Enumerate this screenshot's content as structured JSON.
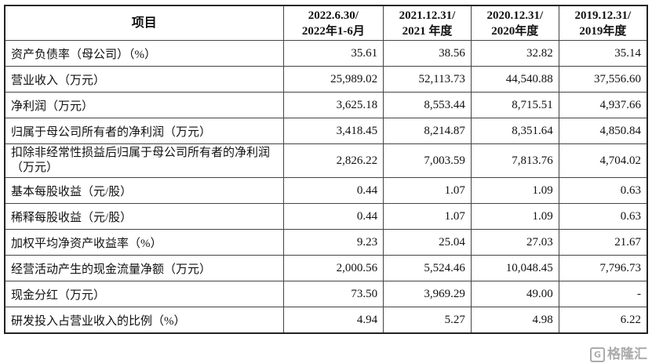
{
  "table": {
    "headers": [
      [
        "项目"
      ],
      [
        "2022.6.30/",
        "2022年1-6月"
      ],
      [
        "2021.12.31/",
        "2021 年度"
      ],
      [
        "2020.12.31/",
        "2020年度"
      ],
      [
        "2019.12.31/",
        "2019年度"
      ]
    ],
    "rows": [
      {
        "label": "资产负债率（母公司）（%）",
        "values": [
          "35.61",
          "38.56",
          "32.82",
          "35.14"
        ]
      },
      {
        "label": "营业收入（万元）",
        "values": [
          "25,989.02",
          "52,113.73",
          "44,540.88",
          "37,556.60"
        ]
      },
      {
        "label": "净利润（万元）",
        "values": [
          "3,625.18",
          "8,553.44",
          "8,715.51",
          "4,937.66"
        ]
      },
      {
        "label": "归属于母公司所有者的净利润（万元）",
        "values": [
          "3,418.45",
          "8,214.87",
          "8,351.64",
          "4,850.84"
        ]
      },
      {
        "label": "扣除非经常性损益后归属于母公司所有者的净利润（万元）",
        "values": [
          "2,826.22",
          "7,003.59",
          "7,813.76",
          "4,704.02"
        ]
      },
      {
        "label": "基本每股收益（元/股）",
        "values": [
          "0.44",
          "1.07",
          "1.09",
          "0.63"
        ]
      },
      {
        "label": "稀释每股收益（元/股）",
        "values": [
          "0.44",
          "1.07",
          "1.09",
          "0.63"
        ]
      },
      {
        "label": "加权平均净资产收益率（%）",
        "values": [
          "9.23",
          "25.04",
          "27.03",
          "21.67"
        ]
      },
      {
        "label": "经营活动产生的现金流量净额（万元）",
        "values": [
          "2,000.56",
          "5,524.46",
          "10,048.45",
          "7,796.73"
        ]
      },
      {
        "label": "现金分红（万元）",
        "values": [
          "73.50",
          "3,969.29",
          "49.00",
          "-"
        ]
      },
      {
        "label": "研发投入占营业收入的比例（%）",
        "values": [
          "4.94",
          "5.27",
          "4.98",
          "6.22"
        ]
      }
    ]
  },
  "watermark": {
    "glyph": "G",
    "text": "格隆汇"
  }
}
